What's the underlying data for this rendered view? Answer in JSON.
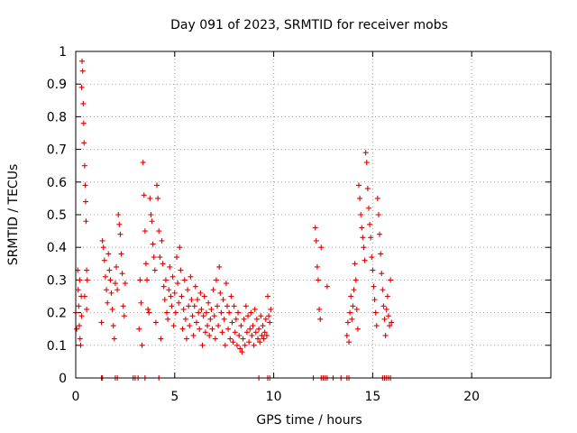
{
  "chart_data": {
    "type": "scatter",
    "title": "Day 091 of 2023, SRMTID for receiver mobs",
    "xlabel": "GPS time / hours",
    "ylabel": "SRMTID / TECUs",
    "xlim": [
      0,
      24
    ],
    "ylim": [
      0,
      1
    ],
    "x_ticks": [
      "0",
      "5",
      "10",
      "15",
      "20"
    ],
    "y_ticks": [
      "0",
      "0.1",
      "0.2",
      "0.3",
      "0.4",
      "0.5",
      "0.6",
      "0.7",
      "0.8",
      "0.9",
      "1"
    ],
    "grid": true,
    "marker": "+",
    "color": "#e00000",
    "series": [
      {
        "points": [
          [
            0.0,
            0.2
          ],
          [
            0.05,
            0.15
          ],
          [
            0.1,
            0.33
          ],
          [
            0.12,
            0.27
          ],
          [
            0.15,
            0.22
          ],
          [
            0.18,
            0.16
          ],
          [
            0.2,
            0.3
          ],
          [
            0.22,
            0.12
          ],
          [
            0.25,
            0.1
          ],
          [
            0.28,
            0.25
          ],
          [
            0.3,
            0.89
          ],
          [
            0.3,
            0.19
          ],
          [
            0.32,
            0.97
          ],
          [
            0.35,
            0.94
          ],
          [
            0.38,
            0.84
          ],
          [
            0.4,
            0.78
          ],
          [
            0.42,
            0.72
          ],
          [
            0.45,
            0.65
          ],
          [
            0.45,
            0.25
          ],
          [
            0.48,
            0.59
          ],
          [
            0.5,
            0.54
          ],
          [
            0.52,
            0.48
          ],
          [
            0.55,
            0.33
          ],
          [
            0.55,
            0.21
          ],
          [
            0.58,
            0.3
          ],
          [
            1.3,
            0.17
          ],
          [
            1.35,
            0.42
          ],
          [
            1.4,
            0.4
          ],
          [
            1.45,
            0.36
          ],
          [
            1.5,
            0.31
          ],
          [
            1.55,
            0.27
          ],
          [
            1.6,
            0.23
          ],
          [
            1.65,
            0.38
          ],
          [
            1.7,
            0.33
          ],
          [
            1.75,
            0.3
          ],
          [
            1.8,
            0.26
          ],
          [
            1.85,
            0.21
          ],
          [
            1.9,
            0.16
          ],
          [
            1.95,
            0.12
          ],
          [
            2.0,
            0.29
          ],
          [
            2.05,
            0.34
          ],
          [
            2.1,
            0.27
          ],
          [
            2.15,
            0.5
          ],
          [
            2.2,
            0.47
          ],
          [
            2.25,
            0.44
          ],
          [
            2.3,
            0.38
          ],
          [
            2.35,
            0.32
          ],
          [
            2.4,
            0.22
          ],
          [
            2.45,
            0.19
          ],
          [
            2.5,
            0.29
          ],
          [
            3.2,
            0.15
          ],
          [
            3.25,
            0.3
          ],
          [
            3.3,
            0.23
          ],
          [
            3.35,
            0.1
          ],
          [
            3.4,
            0.66
          ],
          [
            3.45,
            0.56
          ],
          [
            3.5,
            0.45
          ],
          [
            3.55,
            0.35
          ],
          [
            3.6,
            0.3
          ],
          [
            3.65,
            0.21
          ],
          [
            3.7,
            0.2
          ],
          [
            3.75,
            0.55
          ],
          [
            3.8,
            0.5
          ],
          [
            3.85,
            0.48
          ],
          [
            3.9,
            0.41
          ],
          [
            3.95,
            0.37
          ],
          [
            4.0,
            0.33
          ],
          [
            4.05,
            0.17
          ],
          [
            4.1,
            0.59
          ],
          [
            4.15,
            0.55
          ],
          [
            4.2,
            0.45
          ],
          [
            4.25,
            0.37
          ],
          [
            4.3,
            0.12
          ],
          [
            4.35,
            0.42
          ],
          [
            4.4,
            0.35
          ],
          [
            4.45,
            0.28
          ],
          [
            4.5,
            0.24
          ],
          [
            4.55,
            0.3
          ],
          [
            4.6,
            0.2
          ],
          [
            4.65,
            0.18
          ],
          [
            4.7,
            0.27
          ],
          [
            4.75,
            0.34
          ],
          [
            4.8,
            0.25
          ],
          [
            4.85,
            0.22
          ],
          [
            4.9,
            0.31
          ],
          [
            4.95,
            0.16
          ],
          [
            5.0,
            0.26
          ],
          [
            5.05,
            0.2
          ],
          [
            5.1,
            0.37
          ],
          [
            5.15,
            0.29
          ],
          [
            5.2,
            0.23
          ],
          [
            5.25,
            0.4
          ],
          [
            5.3,
            0.33
          ],
          [
            5.35,
            0.25
          ],
          [
            5.4,
            0.15
          ],
          [
            5.45,
            0.21
          ],
          [
            5.5,
            0.3
          ],
          [
            5.55,
            0.18
          ],
          [
            5.6,
            0.12
          ],
          [
            5.65,
            0.27
          ],
          [
            5.7,
            0.22
          ],
          [
            5.75,
            0.16
          ],
          [
            5.8,
            0.31
          ],
          [
            5.85,
            0.24
          ],
          [
            5.9,
            0.19
          ],
          [
            5.95,
            0.13
          ],
          [
            6.0,
            0.22
          ],
          [
            6.05,
            0.28
          ],
          [
            6.1,
            0.17
          ],
          [
            6.15,
            0.24
          ],
          [
            6.2,
            0.2
          ],
          [
            6.25,
            0.15
          ],
          [
            6.3,
            0.26
          ],
          [
            6.35,
            0.21
          ],
          [
            6.4,
            0.1
          ],
          [
            6.45,
            0.19
          ],
          [
            6.5,
            0.25
          ],
          [
            6.55,
            0.14
          ],
          [
            6.6,
            0.2
          ],
          [
            6.65,
            0.16
          ],
          [
            6.7,
            0.23
          ],
          [
            6.75,
            0.13
          ],
          [
            6.8,
            0.18
          ],
          [
            6.85,
            0.21
          ],
          [
            6.9,
            0.15
          ],
          [
            6.95,
            0.27
          ],
          [
            7.0,
            0.19
          ],
          [
            7.05,
            0.12
          ],
          [
            7.1,
            0.3
          ],
          [
            7.15,
            0.22
          ],
          [
            7.2,
            0.16
          ],
          [
            7.25,
            0.34
          ],
          [
            7.3,
            0.26
          ],
          [
            7.35,
            0.2
          ],
          [
            7.4,
            0.14
          ],
          [
            7.45,
            0.24
          ],
          [
            7.5,
            0.18
          ],
          [
            7.55,
            0.1
          ],
          [
            7.6,
            0.29
          ],
          [
            7.65,
            0.22
          ],
          [
            7.7,
            0.15
          ],
          [
            7.75,
            0.2
          ],
          [
            7.8,
            0.12
          ],
          [
            7.85,
            0.25
          ],
          [
            7.9,
            0.17
          ],
          [
            7.95,
            0.11
          ],
          [
            8.0,
            0.22
          ],
          [
            8.05,
            0.14
          ],
          [
            8.1,
            0.18
          ],
          [
            8.15,
            0.1
          ],
          [
            8.2,
            0.2
          ],
          [
            8.25,
            0.13
          ],
          [
            8.3,
            0.09
          ],
          [
            8.35,
            0.16
          ],
          [
            8.4,
            0.08
          ],
          [
            8.45,
            0.12
          ],
          [
            8.5,
            0.18
          ],
          [
            8.55,
            0.1
          ],
          [
            8.6,
            0.22
          ],
          [
            8.65,
            0.14
          ],
          [
            8.7,
            0.19
          ],
          [
            8.75,
            0.11
          ],
          [
            8.8,
            0.15
          ],
          [
            8.85,
            0.2
          ],
          [
            8.9,
            0.13
          ],
          [
            8.95,
            0.16
          ],
          [
            9.0,
            0.1
          ],
          [
            9.05,
            0.21
          ],
          [
            9.1,
            0.14
          ],
          [
            9.15,
            0.18
          ],
          [
            9.2,
            0.12
          ],
          [
            9.25,
            0.15
          ],
          [
            9.3,
            0.11
          ],
          [
            9.35,
            0.19
          ],
          [
            9.4,
            0.13
          ],
          [
            9.45,
            0.16
          ],
          [
            9.5,
            0.12
          ],
          [
            9.55,
            0.14
          ],
          [
            9.6,
            0.18
          ],
          [
            9.65,
            0.13
          ],
          [
            9.7,
            0.25
          ],
          [
            9.75,
            0.19
          ],
          [
            9.8,
            0.17
          ],
          [
            9.85,
            0.21
          ],
          [
            12.1,
            0.46
          ],
          [
            12.15,
            0.42
          ],
          [
            12.2,
            0.34
          ],
          [
            12.25,
            0.3
          ],
          [
            12.3,
            0.21
          ],
          [
            12.35,
            0.18
          ],
          [
            12.4,
            0.4
          ],
          [
            12.7,
            0.28
          ],
          [
            13.7,
            0.13
          ],
          [
            13.75,
            0.17
          ],
          [
            13.8,
            0.11
          ],
          [
            13.85,
            0.2
          ],
          [
            13.9,
            0.25
          ],
          [
            13.95,
            0.18
          ],
          [
            14.0,
            0.22
          ],
          [
            14.05,
            0.27
          ],
          [
            14.1,
            0.35
          ],
          [
            14.15,
            0.3
          ],
          [
            14.2,
            0.21
          ],
          [
            14.25,
            0.15
          ],
          [
            14.3,
            0.59
          ],
          [
            14.35,
            0.55
          ],
          [
            14.4,
            0.5
          ],
          [
            14.45,
            0.46
          ],
          [
            14.5,
            0.43
          ],
          [
            14.55,
            0.4
          ],
          [
            14.6,
            0.36
          ],
          [
            14.65,
            0.69
          ],
          [
            14.7,
            0.66
          ],
          [
            14.75,
            0.58
          ],
          [
            14.8,
            0.52
          ],
          [
            14.85,
            0.47
          ],
          [
            14.9,
            0.43
          ],
          [
            14.95,
            0.37
          ],
          [
            15.0,
            0.33
          ],
          [
            15.05,
            0.28
          ],
          [
            15.1,
            0.24
          ],
          [
            15.15,
            0.2
          ],
          [
            15.2,
            0.16
          ],
          [
            15.25,
            0.55
          ],
          [
            15.3,
            0.5
          ],
          [
            15.35,
            0.44
          ],
          [
            15.4,
            0.38
          ],
          [
            15.45,
            0.32
          ],
          [
            15.5,
            0.27
          ],
          [
            15.55,
            0.22
          ],
          [
            15.6,
            0.18
          ],
          [
            15.65,
            0.13
          ],
          [
            15.7,
            0.21
          ],
          [
            15.75,
            0.25
          ],
          [
            15.8,
            0.19
          ],
          [
            15.85,
            0.16
          ],
          [
            15.9,
            0.3
          ],
          [
            15.95,
            0.17
          ],
          [
            1.3,
            0.0
          ],
          [
            1.35,
            0.0
          ],
          [
            2.0,
            0.0
          ],
          [
            2.1,
            0.0
          ],
          [
            2.9,
            0.0
          ],
          [
            3.0,
            0.0
          ],
          [
            3.15,
            0.0
          ],
          [
            3.5,
            0.0
          ],
          [
            4.2,
            0.0
          ],
          [
            9.25,
            0.0
          ],
          [
            9.7,
            0.0
          ],
          [
            9.8,
            0.0
          ],
          [
            12.0,
            0.0
          ],
          [
            12.4,
            0.0
          ],
          [
            12.5,
            0.0
          ],
          [
            12.6,
            0.0
          ],
          [
            12.7,
            0.0
          ],
          [
            13.0,
            0.0
          ],
          [
            13.4,
            0.0
          ],
          [
            13.7,
            0.0
          ],
          [
            13.8,
            0.0
          ],
          [
            15.5,
            0.0
          ],
          [
            15.6,
            0.0
          ],
          [
            15.7,
            0.0
          ],
          [
            15.8,
            0.0
          ],
          [
            15.9,
            0.0
          ]
        ]
      }
    ]
  }
}
